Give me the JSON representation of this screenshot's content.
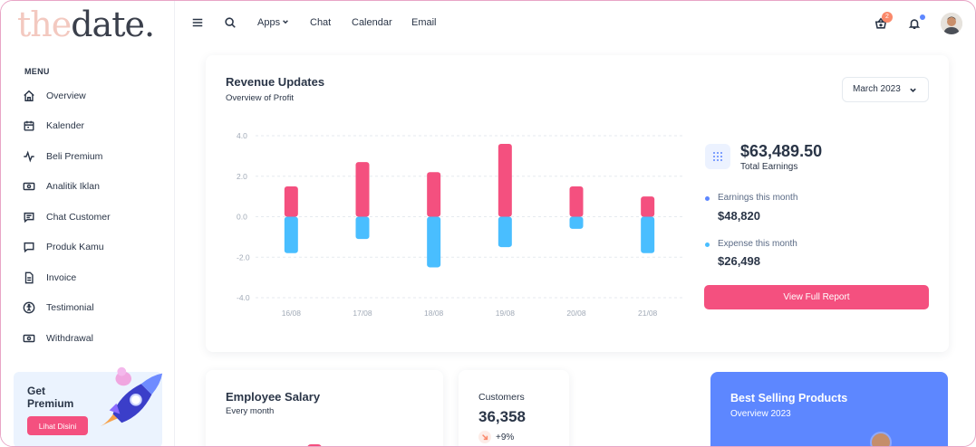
{
  "logo": {
    "part1": "the",
    "part2": "date."
  },
  "sidebar": {
    "menu_title": "MENU",
    "items": [
      {
        "label": "Overview",
        "icon": "home-icon"
      },
      {
        "label": "Kalender",
        "icon": "calendar-icon"
      },
      {
        "label": "Beli Premium",
        "icon": "activity-icon"
      },
      {
        "label": "Analitik Iklan",
        "icon": "cash-icon"
      },
      {
        "label": "Chat Customer",
        "icon": "chat-icon"
      },
      {
        "label": "Produk Kamu",
        "icon": "message-dots-icon"
      },
      {
        "label": "Invoice",
        "icon": "file-icon"
      },
      {
        "label": "Testimonial",
        "icon": "accessible-icon"
      },
      {
        "label": "Withdrawal",
        "icon": "cash-icon"
      }
    ],
    "promo": {
      "title": "Get Premium",
      "button": "Lihat Disini"
    }
  },
  "topbar": {
    "links": [
      "Apps",
      "Chat",
      "Calendar",
      "Email"
    ],
    "cart_badge": "2"
  },
  "revenue": {
    "title": "Revenue Updates",
    "subtitle": "Overview of Profit",
    "month": "March 2023",
    "total_value": "$63,489.50",
    "total_label": "Total Earnings",
    "earnings_label": "Earnings this month",
    "earnings_value": "$48,820",
    "expense_label": "Expense this month",
    "expense_value": "$26,498",
    "report_button": "View Full Report",
    "colors": {
      "earnings": "#f4507f",
      "expense": "#49beff",
      "accent": "#5d87ff"
    }
  },
  "chart_data": {
    "type": "bar",
    "categories": [
      "16/08",
      "17/08",
      "18/08",
      "19/08",
      "20/08",
      "21/08"
    ],
    "series": [
      {
        "values": [
          1.5,
          2.7,
          2.2,
          3.6,
          1.5,
          1.0
        ]
      },
      {
        "values": [
          -1.8,
          -1.1,
          -2.5,
          -1.5,
          -0.6,
          -1.8
        ]
      }
    ],
    "yticks": [
      "4.0",
      "2.0",
      "0.0",
      "-2.0",
      "-4.0"
    ],
    "ylim": [
      -4,
      4
    ],
    "stacked": true,
    "grid": true
  },
  "employee": {
    "title": "Employee Salary",
    "subtitle": "Every month"
  },
  "customers": {
    "label": "Customers",
    "value": "36,358",
    "change": "+9%"
  },
  "best": {
    "title": "Best Selling Products",
    "subtitle": "Overview 2023"
  }
}
